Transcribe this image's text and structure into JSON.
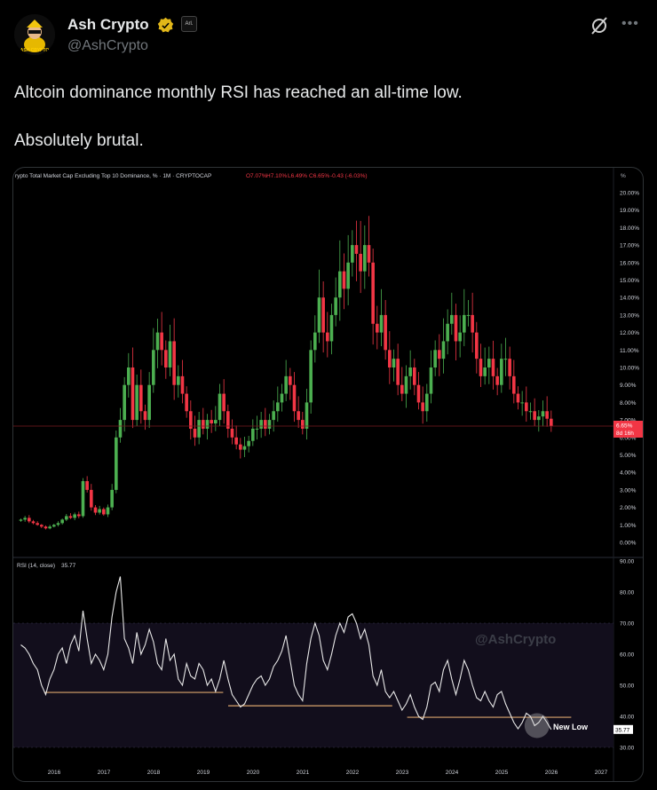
{
  "author": {
    "name": "Ash Crypto",
    "handle": "@AshCrypto",
    "affiliate_badge": "Arl.",
    "avatar_text": "ASH CRYPTO"
  },
  "icons": {
    "verified": "verified-badge-icon",
    "grok": "grok-icon",
    "more": "more-icon"
  },
  "more_label": "•••",
  "tweet": {
    "line1": "Altcoin dominance monthly RSI has reached an all-time low.",
    "line2": "Absolutely brutal."
  },
  "chart_data": [
    {
      "type": "candlestick",
      "title": "rypto Total Market Cap Excluding Top 10 Dominance, % · 1M · CRYPTOCAP",
      "ohlc": {
        "o": "O7.07%",
        "h": "H7.10%",
        "l": "L6.49%",
        "c": "C6.65%",
        "chg": "-0.43 (-6.03%)"
      },
      "axis_unit": "%",
      "start": 2015.33,
      "step_months": 1,
      "closes": [
        1.3,
        1.4,
        1.2,
        1.1,
        1.0,
        0.9,
        0.8,
        0.9,
        1.0,
        1.1,
        1.3,
        1.5,
        1.4,
        1.6,
        1.5,
        3.5,
        3.0,
        2.0,
        1.7,
        1.9,
        1.6,
        2.0,
        3.0,
        6.0,
        7.0,
        9.0,
        10.0,
        7.0,
        9.0,
        7.5,
        7.0,
        9.0,
        11.0,
        12.0,
        11.0,
        10.0,
        11.5,
        9.0,
        9.5,
        8.5,
        7.5,
        6.5,
        6.0,
        7.0,
        6.5,
        7.0,
        6.8,
        7.0,
        8.5,
        7.5,
        6.5,
        6.0,
        5.6,
        5.3,
        5.5,
        5.8,
        6.5,
        6.5,
        7.0,
        6.5,
        7.0,
        7.5,
        8.0,
        8.5,
        9.5,
        9.0,
        7.5,
        7.0,
        6.5,
        8.0,
        11.0,
        12.0,
        14.0,
        12.0,
        11.5,
        13.0,
        14.0,
        15.5,
        14.5,
        16.0,
        17.0,
        16.5,
        15.5,
        17.0,
        16.0,
        12.5,
        12.0,
        13.0,
        11.0,
        10.0,
        10.5,
        9.0,
        8.5,
        9.5,
        10.0,
        9.0,
        8.0,
        7.5,
        8.5,
        10.0,
        11.0,
        10.5,
        11.5,
        12.5,
        13.0,
        11.5,
        12.0,
        13.0,
        13.0,
        12.0,
        10.5,
        9.5,
        10.0,
        10.5,
        9.5,
        9.0,
        10.5,
        10.5,
        9.5,
        8.5,
        8.0,
        8.0,
        7.5,
        7.5,
        7.0,
        7.2,
        7.5,
        7.07,
        6.65
      ],
      "ylim": [
        0,
        20
      ],
      "yticks": [
        "0.00%",
        "1.00%",
        "2.00%",
        "3.00%",
        "4.00%",
        "5.00%",
        "6.00%",
        "7.00%",
        "8.00%",
        "9.00%",
        "10.00%",
        "11.00%",
        "12.00%",
        "13.00%",
        "14.00%",
        "15.00%",
        "16.00%",
        "17.00%",
        "18.00%",
        "19.00%",
        "20.00%"
      ],
      "last_price": {
        "value": 6.65,
        "label": "6.65%",
        "countdown": "8d 16h"
      }
    },
    {
      "type": "line",
      "title": "RSI (14, close)",
      "last_value_label": "35.77",
      "start": 2015.33,
      "values": [
        63,
        62,
        60,
        57,
        55,
        50,
        47,
        52,
        55,
        60,
        62,
        57,
        63,
        66,
        61,
        74,
        65,
        57,
        60,
        58,
        55,
        60,
        72,
        80,
        85,
        65,
        62,
        57,
        67,
        60,
        63,
        68,
        64,
        57,
        55,
        65,
        58,
        60,
        52,
        50,
        57,
        53,
        52,
        57,
        55,
        50,
        52,
        48,
        52,
        58,
        52,
        47,
        45,
        43,
        44,
        47,
        50,
        52,
        53,
        50,
        52,
        56,
        58,
        61,
        66,
        58,
        50,
        47,
        45,
        57,
        65,
        70,
        66,
        58,
        55,
        60,
        66,
        70,
        67,
        72,
        73,
        70,
        65,
        68,
        63,
        53,
        50,
        55,
        48,
        46,
        48,
        45,
        42,
        44,
        47,
        43,
        40,
        39,
        43,
        50,
        51,
        48,
        55,
        58,
        52,
        47,
        52,
        58,
        55,
        50,
        46,
        45,
        48,
        45,
        43,
        47,
        48,
        44,
        41,
        38,
        36,
        38,
        41,
        40,
        37,
        38,
        40,
        38,
        35.77
      ],
      "ylim": [
        30,
        90
      ],
      "band": [
        30,
        70
      ],
      "yticks": [
        "30.00",
        "40.00",
        "50.00",
        "60.00",
        "70.00",
        "80.00",
        "90.00"
      ],
      "support_lines": [
        {
          "from": 2015.8,
          "to": 2019.4,
          "value": 47.7
        },
        {
          "from": 2019.5,
          "to": 2022.8,
          "value": 43.4
        },
        {
          "from": 2023.1,
          "to": 2026.4,
          "value": 39.7
        }
      ],
      "annotation": "New Low",
      "watermark": "@AshCrypto"
    },
    {
      "xticks": [
        "2016",
        "2017",
        "2018",
        "2019",
        "2020",
        "2021",
        "2022",
        "2023",
        "2024",
        "2025",
        "2026",
        "2027"
      ]
    }
  ],
  "colors": {
    "up": "#26a69a",
    "green": "#4caf50",
    "down": "#f23645",
    "band": "#120e1c",
    "support": "#d9a46b"
  }
}
